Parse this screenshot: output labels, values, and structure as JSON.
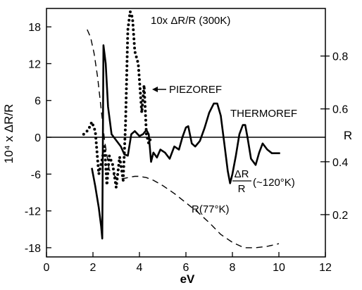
{
  "chart_data": {
    "type": "line",
    "xlabel": "eV",
    "xlim": [
      0,
      12
    ],
    "x_ticks": [
      "0",
      "2",
      "4",
      "6",
      "8",
      "10",
      "12"
    ],
    "left_axis": {
      "label": "10⁴ x ΔR/R",
      "ylim": [
        -19.5,
        21
      ],
      "ticks": [
        "18",
        "12",
        "6",
        "0",
        "-6",
        "-12",
        "-18"
      ]
    },
    "right_axis": {
      "label": "R",
      "ylim": [
        0.04,
        0.98
      ],
      "ticks": [
        "0.8",
        "0.6",
        "0.4",
        "0.2"
      ]
    },
    "zero_line": true,
    "annotations": {
      "ten_x": "10x ΔR/R (300K)",
      "piezoref": "PIEZOREF",
      "thermoref": "THERMOREF",
      "dr_num": "ΔR",
      "dr_den": "R",
      "dr_temp": "(~120°K)",
      "r77": "R(77°K)"
    },
    "series": [
      {
        "name": "10x ΔR/R (300K)",
        "style": "dotted",
        "axis": "left",
        "x": [
          1.6,
          1.8,
          1.95,
          2.1,
          2.25,
          2.4,
          2.5,
          2.6,
          2.7,
          2.85,
          3.0,
          3.15,
          3.3,
          3.4,
          3.5,
          3.6,
          3.7,
          3.8,
          3.95,
          4.1,
          4.2,
          4.3,
          4.4,
          4.5
        ],
        "y": [
          0.5,
          1.2,
          2.5,
          1.0,
          -6.0,
          -3.5,
          -1.5,
          -7.8,
          -3.0,
          -4.5,
          -8.2,
          -3.2,
          -7.0,
          2.0,
          17.5,
          20.5,
          19.5,
          14.0,
          12.0,
          4.0,
          8.5,
          0.5,
          -1.0,
          0.0
        ]
      },
      {
        "name": "THERMOREF",
        "style": "solid",
        "axis": "left",
        "x": [
          1.95,
          2.1,
          2.25,
          2.35,
          2.4,
          2.45,
          2.55,
          2.65,
          2.8,
          3.0,
          3.2,
          3.35,
          3.5,
          3.65,
          3.8,
          4.0,
          4.15,
          4.3,
          4.4,
          4.5,
          4.6,
          4.75,
          4.9,
          5.1,
          5.3,
          5.5,
          5.7,
          5.85,
          6.0,
          6.1,
          6.25,
          6.4,
          6.6,
          6.8,
          7.0,
          7.2,
          7.35,
          7.5,
          7.65,
          7.8,
          7.9,
          8.0,
          8.15,
          8.3,
          8.45,
          8.55,
          8.65,
          8.8,
          9.0,
          9.15,
          9.3,
          9.5,
          9.7,
          9.9,
          10.05
        ],
        "y": [
          -5.0,
          -8.0,
          -11.5,
          -14.5,
          -16.5,
          15.0,
          12.0,
          5.0,
          0.5,
          -0.5,
          -1.5,
          -2.8,
          -3.0,
          0.5,
          1.0,
          0.2,
          0.5,
          1.2,
          0.5,
          -4.0,
          -2.5,
          -3.3,
          -2.0,
          -2.5,
          -3.5,
          -1.5,
          -2.0,
          0.0,
          1.6,
          1.8,
          -1.0,
          -1.5,
          -0.6,
          1.5,
          4.0,
          5.5,
          5.5,
          3.5,
          -1.0,
          -5.5,
          -7.5,
          -6.0,
          -3.0,
          0.5,
          2.0,
          2.0,
          0.0,
          -3.5,
          -4.5,
          -2.5,
          -1.0,
          -2.0,
          -2.6,
          -2.6,
          -2.6
        ]
      },
      {
        "name": "R(77°K)",
        "style": "dashed",
        "axis": "right",
        "x": [
          1.75,
          1.9,
          2.05,
          2.2,
          2.35,
          2.5,
          2.7,
          3.0,
          3.2,
          3.4,
          3.6,
          3.8,
          4.0,
          4.3,
          4.6,
          5.0,
          5.5,
          6.0,
          6.5,
          7.0,
          7.5,
          8.0,
          8.5,
          9.0,
          9.5,
          10.0
        ],
        "y": [
          0.9,
          0.87,
          0.81,
          0.72,
          0.6,
          0.48,
          0.37,
          0.34,
          0.335,
          0.338,
          0.342,
          0.345,
          0.345,
          0.34,
          0.33,
          0.31,
          0.28,
          0.245,
          0.21,
          0.17,
          0.125,
          0.095,
          0.075,
          0.075,
          0.08,
          0.09
        ]
      }
    ]
  }
}
